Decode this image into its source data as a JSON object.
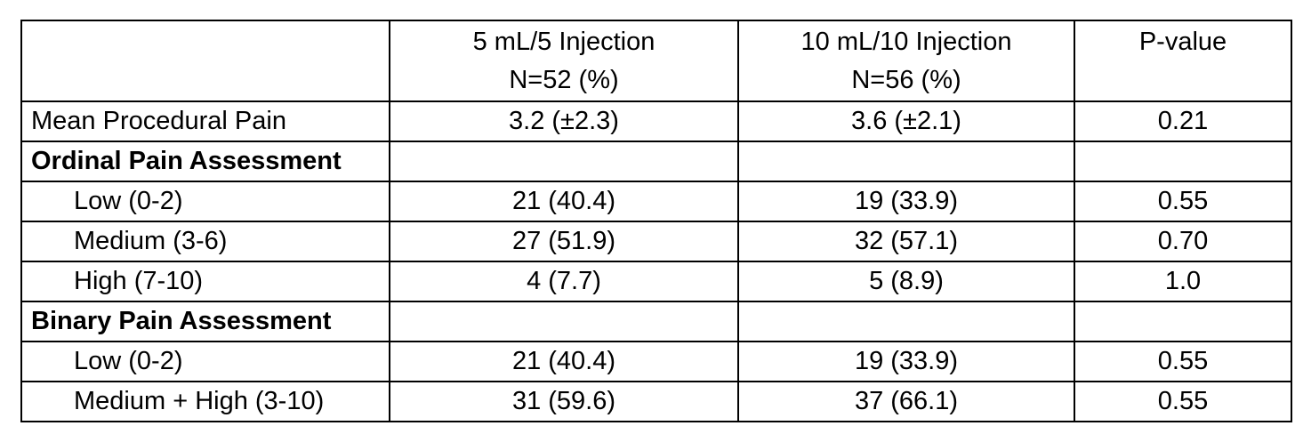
{
  "header": {
    "col1_line1": "5 mL/5 Injection",
    "col1_line2": "N=52 (%)",
    "col2_line1": "10 mL/10 Injection",
    "col2_line2": "N=56 (%)",
    "col3": "P-value"
  },
  "rows": [
    {
      "label": "Mean Procedural Pain",
      "v1": "3.2 (±2.3)",
      "v2": "3.6 (±2.1)",
      "p": "0.21"
    },
    {
      "label": "Ordinal Pain Assessment",
      "v1": "",
      "v2": "",
      "p": ""
    },
    {
      "label": "Low (0-2)",
      "v1": "21 (40.4)",
      "v2": "19 (33.9)",
      "p": "0.55"
    },
    {
      "label": "Medium (3-6)",
      "v1": "27 (51.9)",
      "v2": "32 (57.1)",
      "p": "0.70"
    },
    {
      "label": "High (7-10)",
      "v1": "4 (7.7)",
      "v2": "5 (8.9)",
      "p": "1.0"
    },
    {
      "label": "Binary Pain Assessment",
      "v1": "",
      "v2": "",
      "p": ""
    },
    {
      "label": "Low (0-2)",
      "v1": "21 (40.4)",
      "v2": "19 (33.9)",
      "p": "0.55"
    },
    {
      "label": "Medium + High (3-10)",
      "v1": "31 (59.6)",
      "v2": "37 (66.1)",
      "p": "0.55"
    }
  ]
}
